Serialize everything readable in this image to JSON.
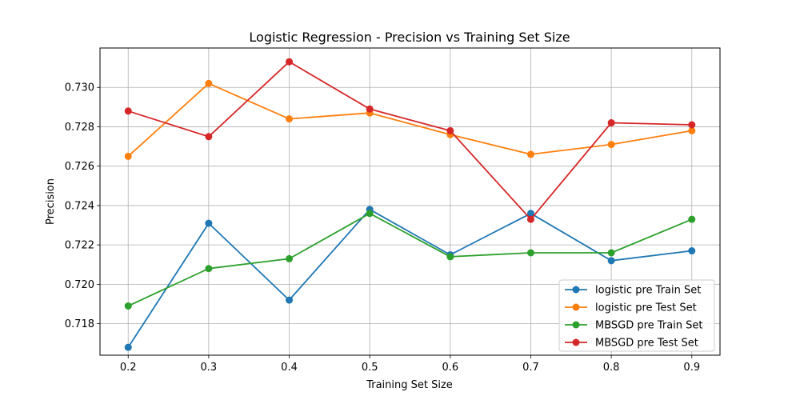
{
  "chart_data": {
    "type": "line",
    "title": "Logistic Regression - Precision vs Training Set Size",
    "xlabel": "Training Set Size",
    "ylabel": "Precision",
    "x": [
      0.2,
      0.3,
      0.4,
      0.5,
      0.6,
      0.7,
      0.8,
      0.9
    ],
    "x_tick_labels": [
      "0.2",
      "0.3",
      "0.4",
      "0.5",
      "0.6",
      "0.7",
      "0.8",
      "0.9"
    ],
    "y_ticks": [
      0.718,
      0.72,
      0.722,
      0.724,
      0.726,
      0.728,
      0.73
    ],
    "y_tick_labels": [
      "0.718",
      "0.720",
      "0.722",
      "0.724",
      "0.726",
      "0.728",
      "0.730"
    ],
    "xlim": [
      0.165,
      0.935
    ],
    "ylim": [
      0.7164,
      0.732
    ],
    "grid": true,
    "legend_position": "lower-right",
    "series": [
      {
        "name": "logistic pre Train Set",
        "color": "#1f77b4",
        "values": [
          0.7168,
          0.7231,
          0.7192,
          0.7238,
          0.7215,
          0.7236,
          0.7212,
          0.7217
        ]
      },
      {
        "name": "logistic pre Test Set",
        "color": "#ff7f0e",
        "values": [
          0.7265,
          0.7302,
          0.7284,
          0.7287,
          0.7276,
          0.7266,
          0.7271,
          0.7278
        ]
      },
      {
        "name": "MBSGD pre Train Set",
        "color": "#2ca02c",
        "values": [
          0.7189,
          0.7208,
          0.7213,
          0.7236,
          0.7214,
          0.7216,
          0.7216,
          0.7233
        ]
      },
      {
        "name": "MBSGD pre Test Set",
        "color": "#d62728",
        "values": [
          0.7288,
          0.7275,
          0.7313,
          0.7289,
          0.7278,
          0.7233,
          0.7282,
          0.7281
        ]
      }
    ]
  }
}
